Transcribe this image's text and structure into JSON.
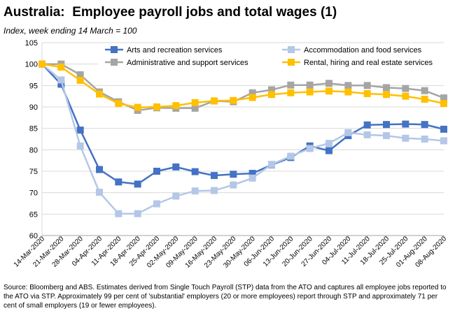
{
  "title": "Australia:  Employee payroll jobs and total wages (1)",
  "subtitle": "Index, week ending 14 March = 100",
  "source": "Source: Bloomberg and ABS.  Estimates derived from Single Touch Payroll (STP) data from the ATO and captures all employee jobs reported to the ATO via STP.  Approximately 99 per cent of 'substantial' employers (20 or more employees) report through STP and approximately 71 per cent of small employers (19 or fewer employees).",
  "chart_data": {
    "type": "line",
    "xlabel": "",
    "ylabel": "",
    "ylim": [
      60,
      105
    ],
    "yticks": [
      60,
      65,
      70,
      75,
      80,
      85,
      90,
      95,
      100,
      105
    ],
    "grid": true,
    "legend": "top",
    "x": [
      "14-Mar-2020",
      "21-Mar-2020",
      "28-Mar-2020",
      "04-Apr-2020",
      "11-Apr-2020",
      "18-Apr-2020",
      "25-Apr-2020",
      "02-May-2020",
      "09-May-2020",
      "16-May-2020",
      "23-May-2020",
      "30-May-2020",
      "06-Jun-2020",
      "13-Jun-2020",
      "20-Jun-2020",
      "27-Jun-2020",
      "04-Jul-2020",
      "11-Jul-2020",
      "18-Jul-2020",
      "25-Jul-2020",
      "01-Aug-2020",
      "08-Aug-2020"
    ],
    "series": [
      {
        "name": "Arts and recreation services",
        "color": "#4472c4",
        "values": [
          100,
          95.3,
          84.6,
          75.4,
          72.5,
          72.0,
          75.0,
          76.0,
          74.9,
          74.0,
          74.3,
          74.5,
          76.5,
          78.2,
          80.9,
          79.8,
          83.3,
          85.8,
          85.9,
          86.0,
          85.9,
          84.8
        ]
      },
      {
        "name": "Accommodation and food services",
        "color": "#b4c7e7",
        "values": [
          100,
          96.3,
          80.9,
          70.1,
          65.1,
          65.1,
          67.4,
          69.2,
          70.4,
          70.5,
          71.8,
          73.4,
          76.6,
          78.5,
          80.3,
          81.5,
          84.0,
          83.5,
          83.3,
          82.7,
          82.5,
          82.1
        ]
      },
      {
        "name": "Administrative and support services",
        "color": "#a5a5a5",
        "values": [
          100,
          100,
          97.5,
          93.5,
          91.2,
          89.2,
          89.8,
          89.7,
          89.7,
          91.4,
          91.2,
          93.3,
          94.0,
          95.1,
          95.1,
          95.5,
          95.0,
          95.0,
          94.5,
          94.3,
          93.8,
          92.1
        ]
      },
      {
        "name": "Rental, hiring and real estate services",
        "color": "#ffc000",
        "values": [
          100,
          99.3,
          96.2,
          93.0,
          90.8,
          89.9,
          90.0,
          90.3,
          91.0,
          91.4,
          91.5,
          92.2,
          92.9,
          93.3,
          93.5,
          93.7,
          93.5,
          93.1,
          92.9,
          92.5,
          91.8,
          90.8
        ]
      }
    ]
  }
}
